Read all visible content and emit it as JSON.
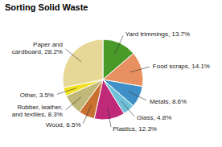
{
  "chart_data": {
    "type": "pie",
    "title": "Sorting Solid Waste",
    "categories": [
      "Yard trimmings, 13.7%",
      "Food scraps, 14.1%",
      "Metals, 8.6%",
      "Glass, 4.8%",
      "Plastics, 12.3%",
      "Wood, 6.5%",
      "Rubber, leather,\nand textiles, 8.3%",
      "Other, 3.5%",
      "Paper and\ncardboard, 28.2%"
    ],
    "values": [
      13.7,
      14.1,
      8.6,
      4.8,
      12.3,
      6.5,
      8.3,
      3.5,
      28.2
    ],
    "colors": [
      "#4a9a2a",
      "#e89060",
      "#4090c8",
      "#70c0d8",
      "#c02878",
      "#c87030",
      "#c0b878",
      "#f0e020",
      "#e8d898"
    ]
  }
}
